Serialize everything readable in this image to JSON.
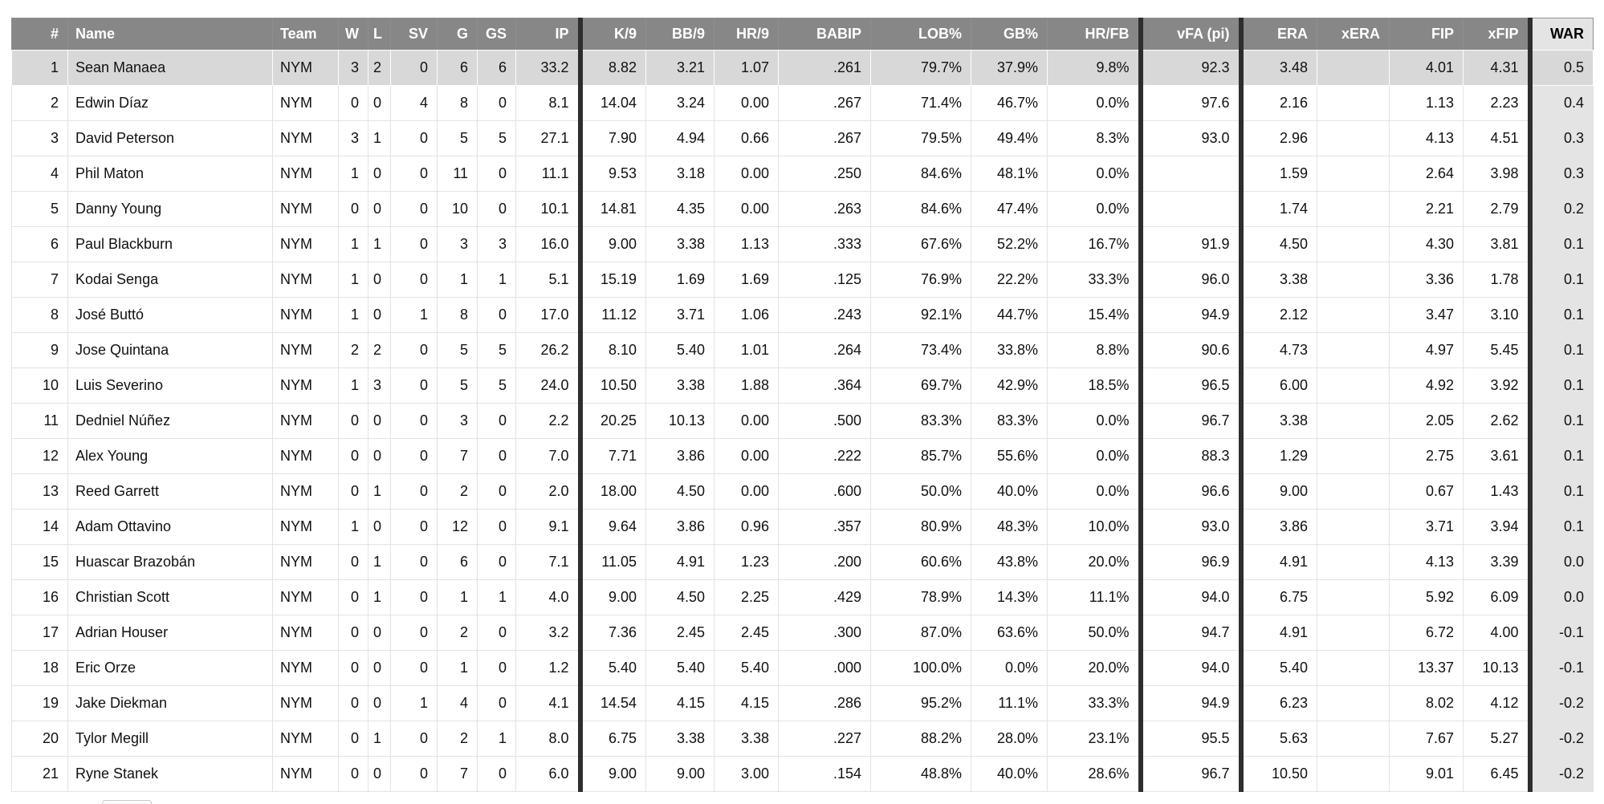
{
  "colors": {
    "header_bg": "#878787",
    "header_text": "#ffffff",
    "row_highlight_bg": "#d8d8d8",
    "war_column_bg": "#e4e4e4",
    "section_divider": "#2e2e2e",
    "gridline": "#e3e3e3",
    "body_text": "#111111"
  },
  "table": {
    "highlighted_row_index": 0,
    "columns": [
      {
        "key": "num",
        "label": "#",
        "align": "right"
      },
      {
        "key": "name",
        "label": "Name",
        "align": "left"
      },
      {
        "key": "team",
        "label": "Team",
        "align": "left"
      },
      {
        "key": "w",
        "label": "W",
        "align": "right"
      },
      {
        "key": "l",
        "label": "L",
        "align": "right"
      },
      {
        "key": "sv",
        "label": "SV",
        "align": "right"
      },
      {
        "key": "g",
        "label": "G",
        "align": "right"
      },
      {
        "key": "gs",
        "label": "GS",
        "align": "right"
      },
      {
        "key": "ip",
        "label": "IP",
        "align": "right"
      },
      {
        "key": "k9",
        "label": "K/9",
        "align": "right",
        "section_start": true
      },
      {
        "key": "bb9",
        "label": "BB/9",
        "align": "right"
      },
      {
        "key": "hr9",
        "label": "HR/9",
        "align": "right"
      },
      {
        "key": "babip",
        "label": "BABIP",
        "align": "right"
      },
      {
        "key": "lob",
        "label": "LOB%",
        "align": "right"
      },
      {
        "key": "gb",
        "label": "GB%",
        "align": "right"
      },
      {
        "key": "hrfb",
        "label": "HR/FB",
        "align": "right"
      },
      {
        "key": "vfa",
        "label": "vFA (pi)",
        "align": "right",
        "section_start": true
      },
      {
        "key": "era",
        "label": "ERA",
        "align": "right",
        "section_start": true
      },
      {
        "key": "xera",
        "label": "xERA",
        "align": "right"
      },
      {
        "key": "fip",
        "label": "FIP",
        "align": "right"
      },
      {
        "key": "xfip",
        "label": "xFIP",
        "align": "right"
      },
      {
        "key": "war",
        "label": "WAR",
        "align": "right",
        "section_start": true,
        "emphasis": true
      }
    ],
    "rows": [
      {
        "num": "1",
        "name": "Sean Manaea",
        "team": "NYM",
        "w": "3",
        "l": "2",
        "sv": "0",
        "g": "6",
        "gs": "6",
        "ip": "33.2",
        "k9": "8.82",
        "bb9": "3.21",
        "hr9": "1.07",
        "babip": ".261",
        "lob": "79.7%",
        "gb": "37.9%",
        "hrfb": "9.8%",
        "vfa": "92.3",
        "era": "3.48",
        "xera": "",
        "fip": "4.01",
        "xfip": "4.31",
        "war": "0.5"
      },
      {
        "num": "2",
        "name": "Edwin Díaz",
        "team": "NYM",
        "w": "0",
        "l": "0",
        "sv": "4",
        "g": "8",
        "gs": "0",
        "ip": "8.1",
        "k9": "14.04",
        "bb9": "3.24",
        "hr9": "0.00",
        "babip": ".267",
        "lob": "71.4%",
        "gb": "46.7%",
        "hrfb": "0.0%",
        "vfa": "97.6",
        "era": "2.16",
        "xera": "",
        "fip": "1.13",
        "xfip": "2.23",
        "war": "0.4"
      },
      {
        "num": "3",
        "name": "David Peterson",
        "team": "NYM",
        "w": "3",
        "l": "1",
        "sv": "0",
        "g": "5",
        "gs": "5",
        "ip": "27.1",
        "k9": "7.90",
        "bb9": "4.94",
        "hr9": "0.66",
        "babip": ".267",
        "lob": "79.5%",
        "gb": "49.4%",
        "hrfb": "8.3%",
        "vfa": "93.0",
        "era": "2.96",
        "xera": "",
        "fip": "4.13",
        "xfip": "4.51",
        "war": "0.3"
      },
      {
        "num": "4",
        "name": "Phil Maton",
        "team": "NYM",
        "w": "1",
        "l": "0",
        "sv": "0",
        "g": "11",
        "gs": "0",
        "ip": "11.1",
        "k9": "9.53",
        "bb9": "3.18",
        "hr9": "0.00",
        "babip": ".250",
        "lob": "84.6%",
        "gb": "48.1%",
        "hrfb": "0.0%",
        "vfa": "",
        "era": "1.59",
        "xera": "",
        "fip": "2.64",
        "xfip": "3.98",
        "war": "0.3"
      },
      {
        "num": "5",
        "name": "Danny Young",
        "team": "NYM",
        "w": "0",
        "l": "0",
        "sv": "0",
        "g": "10",
        "gs": "0",
        "ip": "10.1",
        "k9": "14.81",
        "bb9": "4.35",
        "hr9": "0.00",
        "babip": ".263",
        "lob": "84.6%",
        "gb": "47.4%",
        "hrfb": "0.0%",
        "vfa": "",
        "era": "1.74",
        "xera": "",
        "fip": "2.21",
        "xfip": "2.79",
        "war": "0.2"
      },
      {
        "num": "6",
        "name": "Paul Blackburn",
        "team": "NYM",
        "w": "1",
        "l": "1",
        "sv": "0",
        "g": "3",
        "gs": "3",
        "ip": "16.0",
        "k9": "9.00",
        "bb9": "3.38",
        "hr9": "1.13",
        "babip": ".333",
        "lob": "67.6%",
        "gb": "52.2%",
        "hrfb": "16.7%",
        "vfa": "91.9",
        "era": "4.50",
        "xera": "",
        "fip": "4.30",
        "xfip": "3.81",
        "war": "0.1"
      },
      {
        "num": "7",
        "name": "Kodai Senga",
        "team": "NYM",
        "w": "1",
        "l": "0",
        "sv": "0",
        "g": "1",
        "gs": "1",
        "ip": "5.1",
        "k9": "15.19",
        "bb9": "1.69",
        "hr9": "1.69",
        "babip": ".125",
        "lob": "76.9%",
        "gb": "22.2%",
        "hrfb": "33.3%",
        "vfa": "96.0",
        "era": "3.38",
        "xera": "",
        "fip": "3.36",
        "xfip": "1.78",
        "war": "0.1"
      },
      {
        "num": "8",
        "name": "José Buttó",
        "team": "NYM",
        "w": "1",
        "l": "0",
        "sv": "1",
        "g": "8",
        "gs": "0",
        "ip": "17.0",
        "k9": "11.12",
        "bb9": "3.71",
        "hr9": "1.06",
        "babip": ".243",
        "lob": "92.1%",
        "gb": "44.7%",
        "hrfb": "15.4%",
        "vfa": "94.9",
        "era": "2.12",
        "xera": "",
        "fip": "3.47",
        "xfip": "3.10",
        "war": "0.1"
      },
      {
        "num": "9",
        "name": "Jose Quintana",
        "team": "NYM",
        "w": "2",
        "l": "2",
        "sv": "0",
        "g": "5",
        "gs": "5",
        "ip": "26.2",
        "k9": "8.10",
        "bb9": "5.40",
        "hr9": "1.01",
        "babip": ".264",
        "lob": "73.4%",
        "gb": "33.8%",
        "hrfb": "8.8%",
        "vfa": "90.6",
        "era": "4.73",
        "xera": "",
        "fip": "4.97",
        "xfip": "5.45",
        "war": "0.1"
      },
      {
        "num": "10",
        "name": "Luis Severino",
        "team": "NYM",
        "w": "1",
        "l": "3",
        "sv": "0",
        "g": "5",
        "gs": "5",
        "ip": "24.0",
        "k9": "10.50",
        "bb9": "3.38",
        "hr9": "1.88",
        "babip": ".364",
        "lob": "69.7%",
        "gb": "42.9%",
        "hrfb": "18.5%",
        "vfa": "96.5",
        "era": "6.00",
        "xera": "",
        "fip": "4.92",
        "xfip": "3.92",
        "war": "0.1"
      },
      {
        "num": "11",
        "name": "Dedniel Núñez",
        "team": "NYM",
        "w": "0",
        "l": "0",
        "sv": "0",
        "g": "3",
        "gs": "0",
        "ip": "2.2",
        "k9": "20.25",
        "bb9": "10.13",
        "hr9": "0.00",
        "babip": ".500",
        "lob": "83.3%",
        "gb": "83.3%",
        "hrfb": "0.0%",
        "vfa": "96.7",
        "era": "3.38",
        "xera": "",
        "fip": "2.05",
        "xfip": "2.62",
        "war": "0.1"
      },
      {
        "num": "12",
        "name": "Alex Young",
        "team": "NYM",
        "w": "0",
        "l": "0",
        "sv": "0",
        "g": "7",
        "gs": "0",
        "ip": "7.0",
        "k9": "7.71",
        "bb9": "3.86",
        "hr9": "0.00",
        "babip": ".222",
        "lob": "85.7%",
        "gb": "55.6%",
        "hrfb": "0.0%",
        "vfa": "88.3",
        "era": "1.29",
        "xera": "",
        "fip": "2.75",
        "xfip": "3.61",
        "war": "0.1"
      },
      {
        "num": "13",
        "name": "Reed Garrett",
        "team": "NYM",
        "w": "0",
        "l": "1",
        "sv": "0",
        "g": "2",
        "gs": "0",
        "ip": "2.0",
        "k9": "18.00",
        "bb9": "4.50",
        "hr9": "0.00",
        "babip": ".600",
        "lob": "50.0%",
        "gb": "40.0%",
        "hrfb": "0.0%",
        "vfa": "96.6",
        "era": "9.00",
        "xera": "",
        "fip": "0.67",
        "xfip": "1.43",
        "war": "0.1"
      },
      {
        "num": "14",
        "name": "Adam Ottavino",
        "team": "NYM",
        "w": "1",
        "l": "0",
        "sv": "0",
        "g": "12",
        "gs": "0",
        "ip": "9.1",
        "k9": "9.64",
        "bb9": "3.86",
        "hr9": "0.96",
        "babip": ".357",
        "lob": "80.9%",
        "gb": "48.3%",
        "hrfb": "10.0%",
        "vfa": "93.0",
        "era": "3.86",
        "xera": "",
        "fip": "3.71",
        "xfip": "3.94",
        "war": "0.1"
      },
      {
        "num": "15",
        "name": "Huascar Brazobán",
        "team": "NYM",
        "w": "0",
        "l": "1",
        "sv": "0",
        "g": "6",
        "gs": "0",
        "ip": "7.1",
        "k9": "11.05",
        "bb9": "4.91",
        "hr9": "1.23",
        "babip": ".200",
        "lob": "60.6%",
        "gb": "43.8%",
        "hrfb": "20.0%",
        "vfa": "96.9",
        "era": "4.91",
        "xera": "",
        "fip": "4.13",
        "xfip": "3.39",
        "war": "0.0"
      },
      {
        "num": "16",
        "name": "Christian Scott",
        "team": "NYM",
        "w": "0",
        "l": "1",
        "sv": "0",
        "g": "1",
        "gs": "1",
        "ip": "4.0",
        "k9": "9.00",
        "bb9": "4.50",
        "hr9": "2.25",
        "babip": ".429",
        "lob": "78.9%",
        "gb": "14.3%",
        "hrfb": "11.1%",
        "vfa": "94.0",
        "era": "6.75",
        "xera": "",
        "fip": "5.92",
        "xfip": "6.09",
        "war": "0.0"
      },
      {
        "num": "17",
        "name": "Adrian Houser",
        "team": "NYM",
        "w": "0",
        "l": "0",
        "sv": "0",
        "g": "2",
        "gs": "0",
        "ip": "3.2",
        "k9": "7.36",
        "bb9": "2.45",
        "hr9": "2.45",
        "babip": ".300",
        "lob": "87.0%",
        "gb": "63.6%",
        "hrfb": "50.0%",
        "vfa": "94.7",
        "era": "4.91",
        "xera": "",
        "fip": "6.72",
        "xfip": "4.00",
        "war": "-0.1"
      },
      {
        "num": "18",
        "name": "Eric Orze",
        "team": "NYM",
        "w": "0",
        "l": "0",
        "sv": "0",
        "g": "1",
        "gs": "0",
        "ip": "1.2",
        "k9": "5.40",
        "bb9": "5.40",
        "hr9": "5.40",
        "babip": ".000",
        "lob": "100.0%",
        "gb": "0.0%",
        "hrfb": "20.0%",
        "vfa": "94.0",
        "era": "5.40",
        "xera": "",
        "fip": "13.37",
        "xfip": "10.13",
        "war": "-0.1"
      },
      {
        "num": "19",
        "name": "Jake Diekman",
        "team": "NYM",
        "w": "0",
        "l": "0",
        "sv": "1",
        "g": "4",
        "gs": "0",
        "ip": "4.1",
        "k9": "14.54",
        "bb9": "4.15",
        "hr9": "4.15",
        "babip": ".286",
        "lob": "95.2%",
        "gb": "11.1%",
        "hrfb": "33.3%",
        "vfa": "94.9",
        "era": "6.23",
        "xera": "",
        "fip": "8.02",
        "xfip": "4.12",
        "war": "-0.2"
      },
      {
        "num": "20",
        "name": "Tylor Megill",
        "team": "NYM",
        "w": "0",
        "l": "1",
        "sv": "0",
        "g": "2",
        "gs": "1",
        "ip": "8.0",
        "k9": "6.75",
        "bb9": "3.38",
        "hr9": "3.38",
        "babip": ".227",
        "lob": "88.2%",
        "gb": "28.0%",
        "hrfb": "23.1%",
        "vfa": "95.5",
        "era": "5.63",
        "xera": "",
        "fip": "7.67",
        "xfip": "5.27",
        "war": "-0.2"
      },
      {
        "num": "21",
        "name": "Ryne Stanek",
        "team": "NYM",
        "w": "0",
        "l": "0",
        "sv": "0",
        "g": "7",
        "gs": "0",
        "ip": "6.0",
        "k9": "9.00",
        "bb9": "9.00",
        "hr9": "3.00",
        "babip": ".154",
        "lob": "48.8%",
        "gb": "40.0%",
        "hrfb": "28.6%",
        "vfa": "96.7",
        "era": "10.50",
        "xera": "",
        "fip": "9.01",
        "xfip": "6.45",
        "war": "-0.2"
      }
    ]
  }
}
